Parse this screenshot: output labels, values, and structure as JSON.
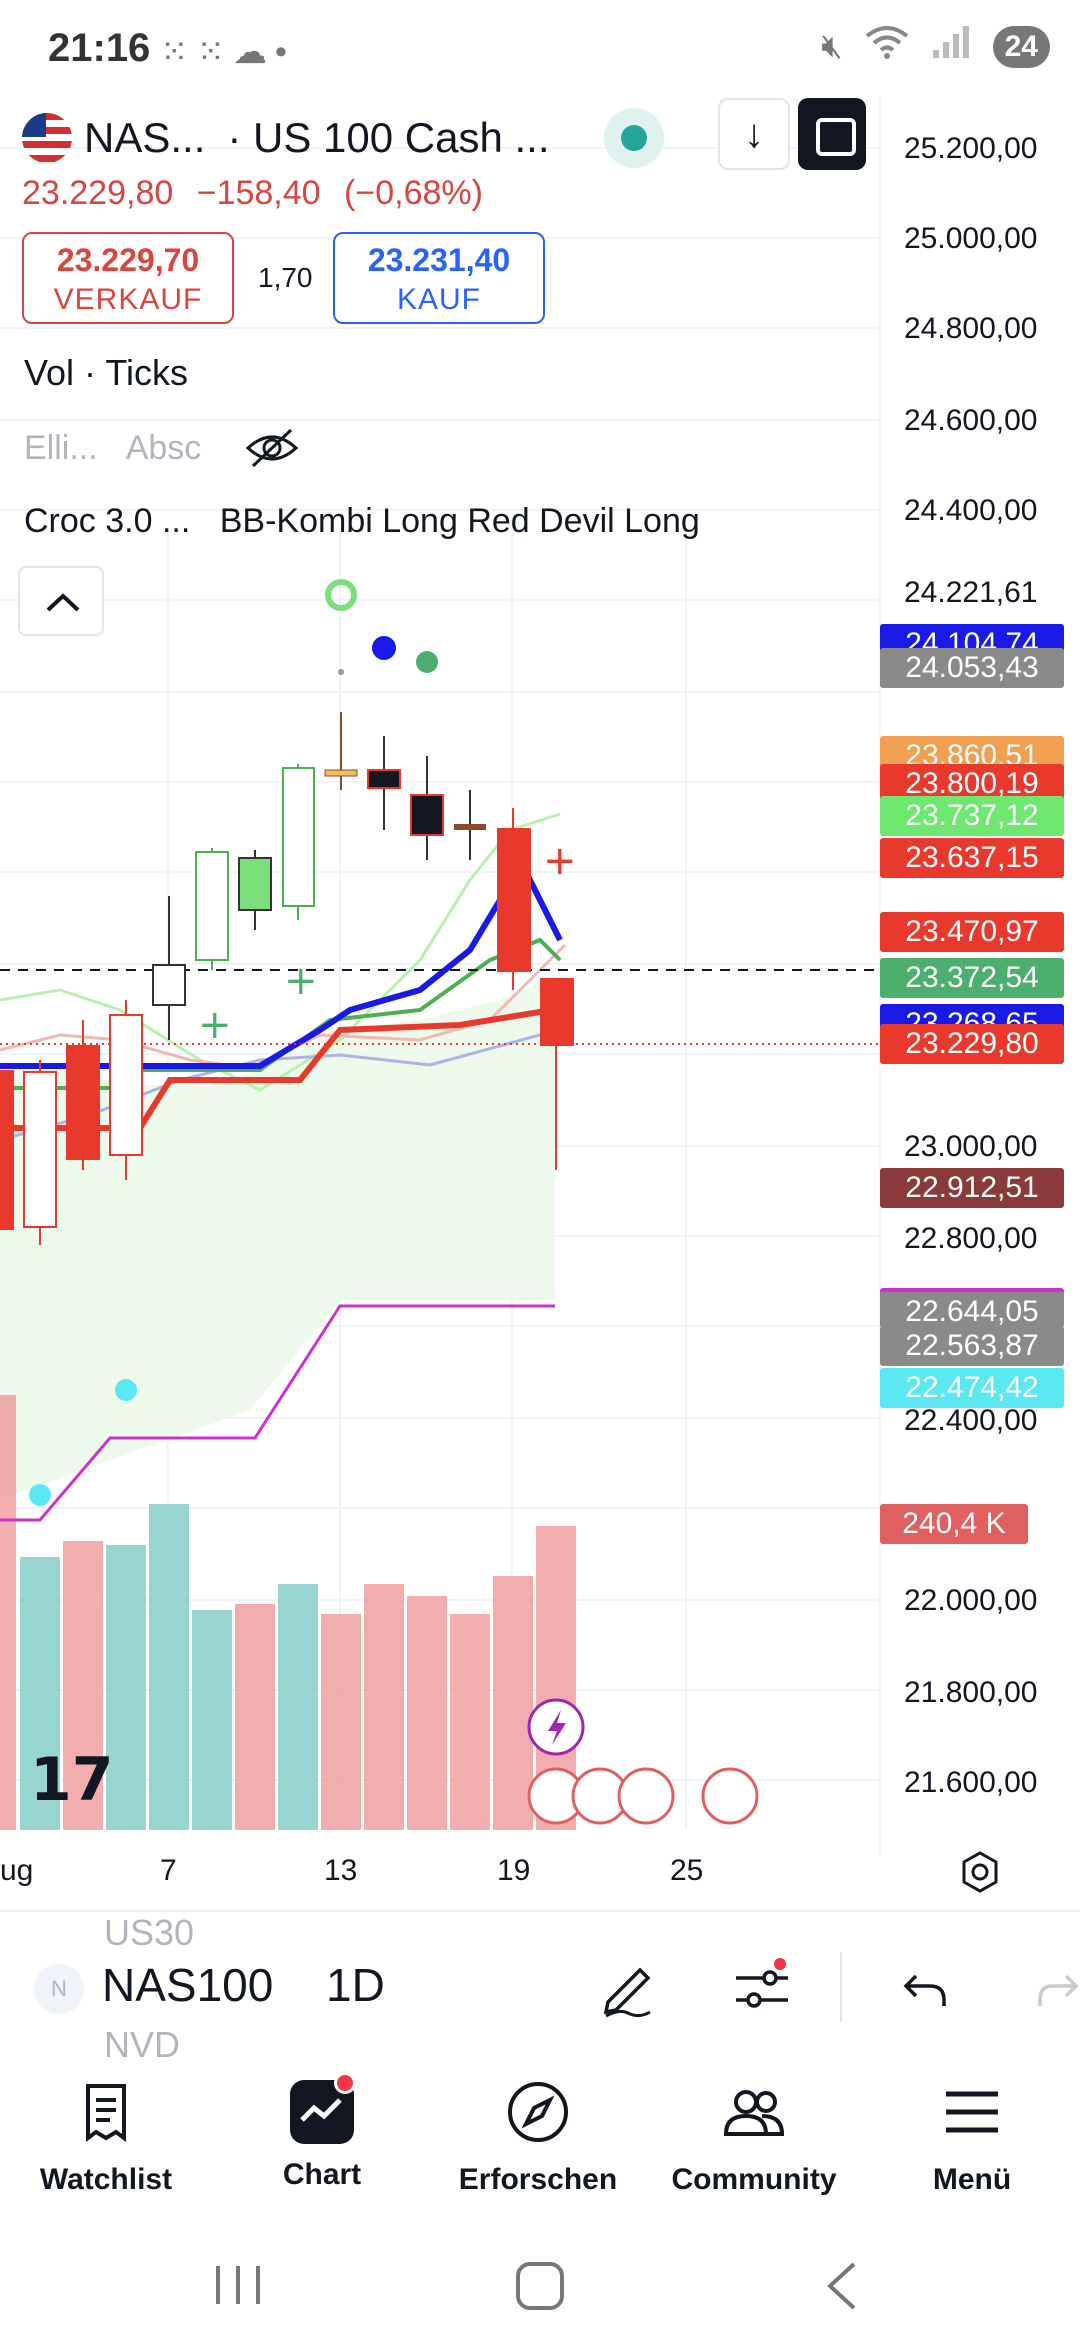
{
  "status_bar": {
    "time": "21:16",
    "left_icons": [
      "grid-icon",
      "grid-icon",
      "cloud-icon",
      "dot-icon"
    ],
    "right_icons": [
      "mute-icon",
      "wifi-icon",
      "signal-icon"
    ],
    "battery": "24"
  },
  "header": {
    "symbol": "NAS...",
    "description": "· US 100 Cash ...",
    "last_price": "23.229,80",
    "change": "−158,40",
    "change_pct": "(−0,68%)"
  },
  "trade": {
    "sell_price": "23.229,70",
    "sell_label": "VERKAUF",
    "spread": "1,70",
    "buy_price": "23.231,40",
    "buy_label": "KAUF"
  },
  "indicators": {
    "volume": "Vol · Ticks",
    "row2": [
      "Elli...",
      "Absc"
    ],
    "row3": [
      "Croc 3.0 ...",
      "BB-Kombi Long Red Devil Long"
    ]
  },
  "price_axis": {
    "labels": [
      "25.200,00",
      "25.000,00",
      "24.800,00",
      "24.600,00",
      "24.400,00",
      "24.221,61",
      "23.000,00",
      "22.800,00",
      "22.400,00",
      "22.000,00",
      "21.800,00",
      "21.600,00"
    ],
    "tags": [
      {
        "value": "24.104,74",
        "color": "#1a1ae6"
      },
      {
        "value": "24.053,43",
        "color": "#8a8a8a"
      },
      {
        "value": "23.860,51",
        "color": "#f0a050"
      },
      {
        "value": "23.800,19",
        "color": "#e8392c"
      },
      {
        "value": "23.737,12",
        "color": "#6ee86e"
      },
      {
        "value": "23.637,15",
        "color": "#e8392c"
      },
      {
        "value": "23.470,97",
        "color": "#e8392c"
      },
      {
        "value": "23.372,54",
        "color": "#4caf6e"
      },
      {
        "value": "23.268,65",
        "color": "#1a1ae6"
      },
      {
        "value": "23.229,80",
        "color": "#e8392c"
      },
      {
        "value": "22.912,51",
        "color": "#8b3a3a"
      },
      {
        "value": "22.644,05",
        "color": "#8a8a8a"
      },
      {
        "value": "22.563,87",
        "color": "#8a8a8a"
      },
      {
        "value": "22.474,42",
        "color": "#5ce8f0"
      },
      {
        "value": "240,4 K",
        "color": "#e06060"
      }
    ]
  },
  "time_axis": [
    "ug",
    "7",
    "13",
    "19",
    "25"
  ],
  "toolbar": {
    "avatar": "N",
    "prev_symbol": "US30",
    "symbol": "NAS100",
    "next_symbol": "NVD",
    "interval": "1D"
  },
  "nav": [
    {
      "label": "Watchlist",
      "icon": "watchlist-icon"
    },
    {
      "label": "Chart",
      "icon": "chart-icon"
    },
    {
      "label": "Erforschen",
      "icon": "compass-icon"
    },
    {
      "label": "Community",
      "icon": "community-icon"
    },
    {
      "label": "Menü",
      "icon": "menu-icon"
    }
  ],
  "colors": {
    "up": "#26a69a",
    "down": "#ef5350",
    "candle_red": "#e8392c",
    "candle_green": "#7be07b",
    "accent_blue": "#2962ff"
  }
}
